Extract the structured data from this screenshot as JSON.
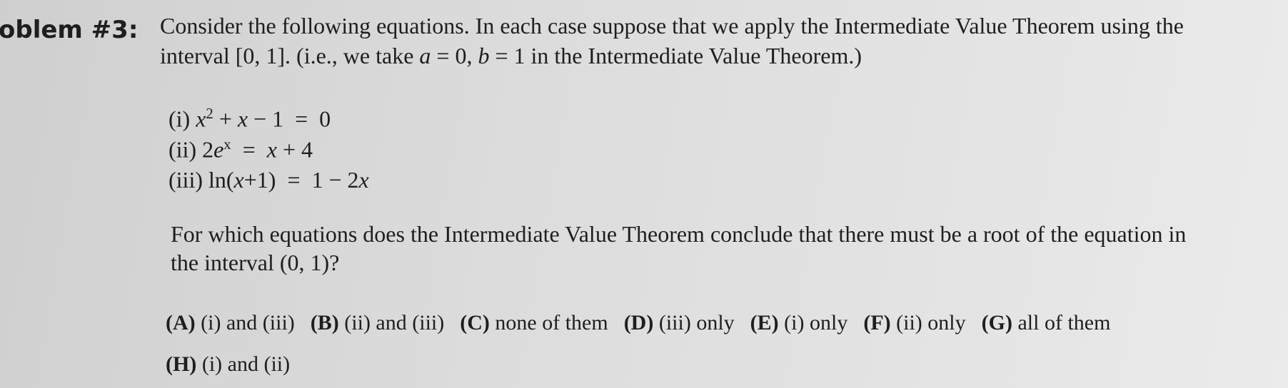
{
  "header": {
    "label": "oblem #3:"
  },
  "prompt": {
    "lines": [
      [
        {
          "t": "Consider the following equations. In each case suppose that we apply the Intermediate Value Theorem using the"
        }
      ],
      [
        {
          "t": "interval [0, 1]. (i.e., we take "
        },
        {
          "i": "a"
        },
        {
          "t": " = 0, "
        },
        {
          "i": "b"
        },
        {
          "t": " = 1 in the Intermediate Value Theorem.)"
        }
      ]
    ]
  },
  "equations": [
    {
      "label": "(i)",
      "parts": [
        {
          "i": "x"
        },
        {
          "sup": "2"
        },
        {
          "t": " + "
        },
        {
          "i": "x"
        },
        {
          "t": " − 1  =  0"
        }
      ]
    },
    {
      "label": "(ii)",
      "parts": [
        {
          "t": "2"
        },
        {
          "i": "e"
        },
        {
          "sup": "x"
        },
        {
          "t": "  =  "
        },
        {
          "i": "x"
        },
        {
          "t": " + 4"
        }
      ]
    },
    {
      "label": "(iii)",
      "parts": [
        {
          "t": "ln("
        },
        {
          "i": "x"
        },
        {
          "t": "+1)  =  1 − 2"
        },
        {
          "i": "x"
        }
      ]
    }
  ],
  "question": {
    "lines": [
      "For which equations does the Intermediate Value Theorem conclude that there must be a root of the equation in",
      "the interval (0, 1)?"
    ]
  },
  "options": {
    "rows": [
      [
        {
          "letter": "(A)",
          "text": "(i) and (iii)"
        },
        {
          "letter": "(B)",
          "text": "(ii) and (iii)"
        },
        {
          "letter": "(C)",
          "text": "none of them"
        },
        {
          "letter": "(D)",
          "text": "(iii) only"
        },
        {
          "letter": "(E)",
          "text": "(i) only"
        },
        {
          "letter": "(F)",
          "text": "(ii) only"
        },
        {
          "letter": "(G)",
          "text": "all of them"
        }
      ],
      [
        {
          "letter": "(H)",
          "text": "(i) and (ii)"
        }
      ]
    ]
  }
}
